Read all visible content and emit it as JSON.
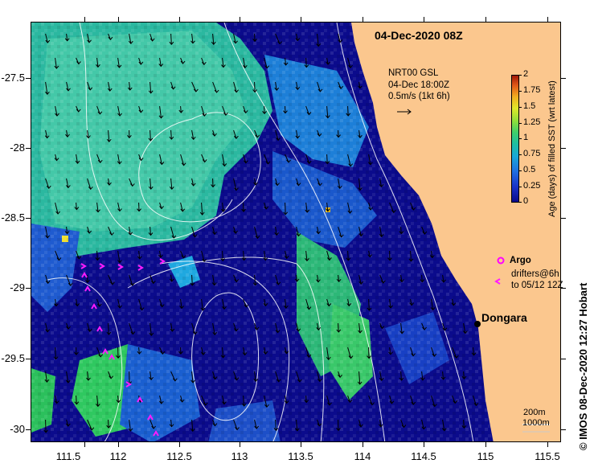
{
  "title": "04-Dec-2020 08Z",
  "current_product": {
    "line1": "NRT00 GSL",
    "line2": "04-Dec 18:00Z",
    "line3": "0.5m/s (1kt 6h)"
  },
  "colorbar": {
    "title": "Age (days) of filled SST (wrt latest)",
    "ticks": [
      "2",
      "1.75",
      "1.5",
      "1.25",
      "1",
      "0.75",
      "0.5",
      "0.25",
      "0"
    ],
    "range": [
      0,
      2
    ]
  },
  "axes": {
    "lat_ticks": [
      "-27.5",
      "-28",
      "-28.5",
      "-29",
      "-29.5",
      "-30"
    ],
    "lon_ticks": [
      "111.5",
      "112",
      "112.5",
      "113",
      "113.5",
      "114",
      "114.5",
      "115",
      "115.5"
    ],
    "lon_range": [
      111.3,
      115.65
    ],
    "lat_range": [
      -27.1,
      -30.1
    ]
  },
  "legend": {
    "argo": "Argo",
    "drifters_line1": "drifters@6h",
    "drifters_line2": "to 05/12 12Z"
  },
  "place": {
    "name": "Dongara",
    "lon": 114.93,
    "lat": -29.26
  },
  "isobaths": {
    "shallow": "200m",
    "deep": "1000m"
  },
  "credit": "© IMOS 08-Dec-2020 12:27 Hobart",
  "colors": {
    "land": "#fbc78e",
    "deep_blue": "#0b0b8c",
    "mid_blue": "#1838c4",
    "teal": "#21b7a2",
    "green": "#2fc860",
    "light_green": "#57cfa0",
    "drifter": "#ff1cff",
    "argo": "#ff00ff"
  }
}
